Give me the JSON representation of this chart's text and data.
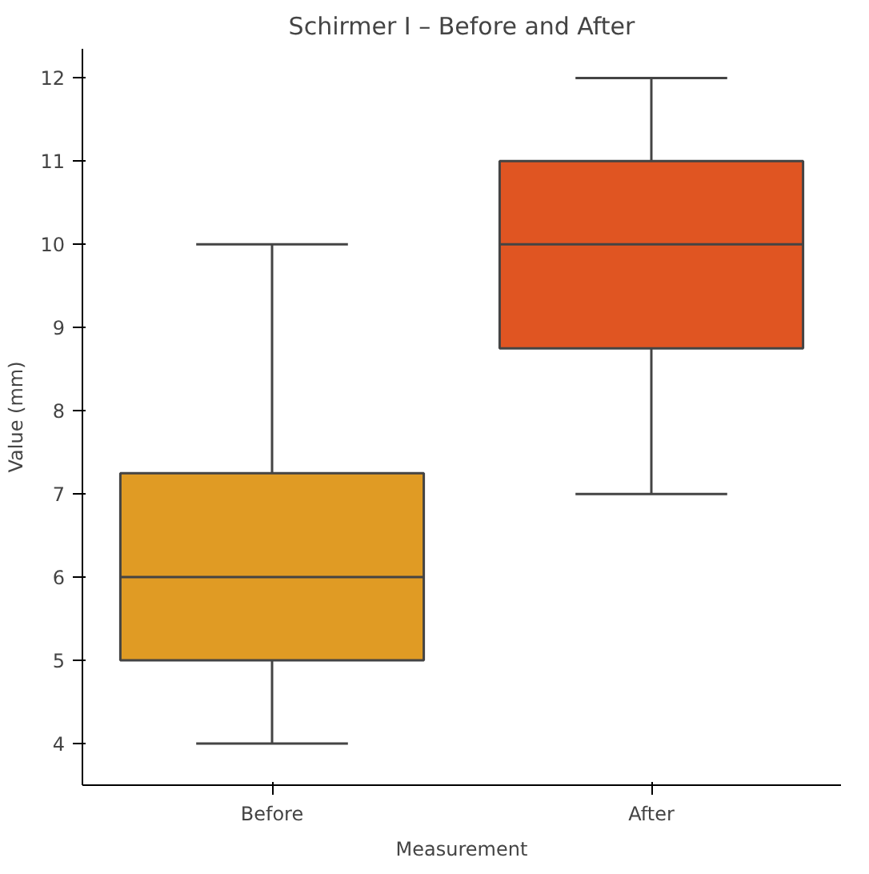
{
  "chart_data": {
    "type": "box",
    "title": "Schirmer I – Before and After",
    "xlabel": "Measurement",
    "ylabel": "Value (mm)",
    "categories": [
      "Before",
      "After"
    ],
    "colors": [
      "#e09b24",
      "#e05522"
    ],
    "boxes": [
      {
        "low": 4,
        "q1": 5,
        "median": 6,
        "q3": 7.25,
        "high": 10
      },
      {
        "low": 7,
        "q1": 8.75,
        "median": 10,
        "q3": 11,
        "high": 12
      }
    ],
    "ylim": [
      3.5,
      12.35
    ],
    "yticks": [
      4,
      5,
      6,
      7,
      8,
      9,
      10,
      11,
      12
    ],
    "grid": false
  }
}
